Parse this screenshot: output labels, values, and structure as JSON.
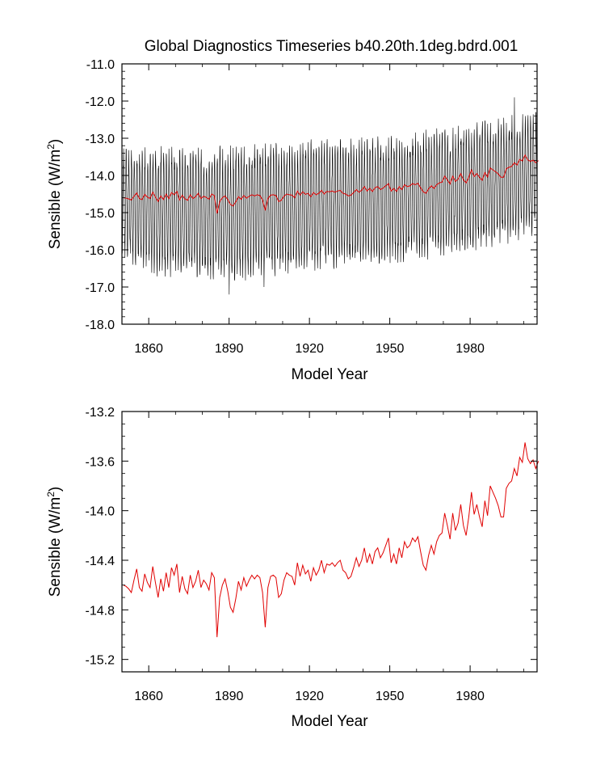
{
  "chart_data": [
    {
      "type": "line",
      "title": "Global Diagnostics Timeseries b40.20th.1deg.bdrd.001",
      "xlabel": "Model Year",
      "ylabel": "Sensible (W/m",
      "ylabel_sup": "2",
      "ylabel_end": ")",
      "xlim": [
        1850,
        2005
      ],
      "ylim": [
        -18.0,
        -11.0
      ],
      "x_ticks": [
        1860,
        1890,
        1920,
        1950,
        1980
      ],
      "x_tick_labels": [
        "1860",
        "1890",
        "1920",
        "1950",
        "1980"
      ],
      "y_ticks": [
        -18.0,
        -17.0,
        -16.0,
        -15.0,
        -14.0,
        -13.0,
        -12.0,
        -11.0
      ],
      "y_tick_labels": [
        "-18.0",
        "-17.0",
        "-16.0",
        "-15.0",
        "-14.0",
        "-13.0",
        "-12.0",
        "-11.0"
      ],
      "grid": false,
      "series": [
        {
          "kind": "monthly-seasonal-cycle",
          "color": "#000000",
          "x_start": 1850,
          "x_end": 2005,
          "monthly_high_envelope": [
            [
              1850,
              -13.5
            ],
            [
              1880,
              -13.5
            ],
            [
              1920,
              -13.3
            ],
            [
              1950,
              -13.2
            ],
            [
              1970,
              -13.0
            ],
            [
              1985,
              -12.8
            ],
            [
              2000,
              -12.6
            ],
            [
              2005,
              -12.5
            ]
          ],
          "monthly_low_envelope": [
            [
              1850,
              -16.0
            ],
            [
              1860,
              -16.4
            ],
            [
              1890,
              -16.6
            ],
            [
              1920,
              -16.3
            ],
            [
              1950,
              -16.1
            ],
            [
              1970,
              -15.9
            ],
            [
              1990,
              -15.6
            ],
            [
              2005,
              -15.4
            ]
          ],
          "extremes": [
            {
              "x": 1890,
              "y": -17.2
            },
            {
              "x": 1903,
              "y": -17.0
            },
            {
              "x": 1996,
              "y": -11.9
            }
          ]
        },
        {
          "kind": "annual-mean",
          "color": "#e00000",
          "ref": "annual_means"
        }
      ]
    },
    {
      "type": "line",
      "title": "",
      "xlabel": "Model Year",
      "ylabel": "Sensible (W/m",
      "ylabel_sup": "2",
      "ylabel_end": ")",
      "xlim": [
        1850,
        2005
      ],
      "ylim": [
        -15.3,
        -13.2
      ],
      "x_ticks": [
        1860,
        1890,
        1920,
        1950,
        1980
      ],
      "x_tick_labels": [
        "1860",
        "1890",
        "1920",
        "1950",
        "1980"
      ],
      "y_ticks": [
        -15.2,
        -14.8,
        -14.4,
        -14.0,
        -13.6,
        -13.2
      ],
      "y_tick_labels": [
        "-15.2",
        "-14.8",
        "-14.4",
        "-14.0",
        "-13.6",
        "-13.2"
      ],
      "grid": false,
      "series": [
        {
          "kind": "annual-mean",
          "color": "#e00000",
          "ref": "annual_means"
        }
      ]
    }
  ],
  "annual_means": {
    "x_start": 1850,
    "values": [
      -14.6,
      -14.61,
      -14.63,
      -14.66,
      -14.56,
      -14.47,
      -14.62,
      -14.65,
      -14.51,
      -14.58,
      -14.62,
      -14.45,
      -14.58,
      -14.7,
      -14.55,
      -14.65,
      -14.5,
      -14.62,
      -14.46,
      -14.52,
      -14.43,
      -14.66,
      -14.53,
      -14.63,
      -14.67,
      -14.52,
      -14.62,
      -14.57,
      -14.48,
      -14.62,
      -14.56,
      -14.59,
      -14.64,
      -14.5,
      -14.54,
      -15.02,
      -14.7,
      -14.6,
      -14.55,
      -14.65,
      -14.78,
      -14.82,
      -14.71,
      -14.57,
      -14.64,
      -14.54,
      -14.61,
      -14.56,
      -14.52,
      -14.55,
      -14.52,
      -14.54,
      -14.66,
      -14.94,
      -14.62,
      -14.53,
      -14.52,
      -14.54,
      -14.7,
      -14.67,
      -14.56,
      -14.5,
      -14.52,
      -14.53,
      -14.6,
      -14.42,
      -14.53,
      -14.44,
      -14.51,
      -14.48,
      -14.57,
      -14.46,
      -14.52,
      -14.48,
      -14.4,
      -14.5,
      -14.43,
      -14.44,
      -14.42,
      -14.45,
      -14.42,
      -14.4,
      -14.48,
      -14.5,
      -14.55,
      -14.53,
      -14.46,
      -14.38,
      -14.45,
      -14.4,
      -14.3,
      -14.42,
      -14.35,
      -14.43,
      -14.33,
      -14.3,
      -14.38,
      -14.34,
      -14.28,
      -14.22,
      -14.42,
      -14.35,
      -14.43,
      -14.3,
      -14.38,
      -14.25,
      -14.3,
      -14.28,
      -14.22,
      -14.25,
      -14.21,
      -14.33,
      -14.44,
      -14.48,
      -14.36,
      -14.28,
      -14.35,
      -14.25,
      -14.2,
      -14.18,
      -14.02,
      -14.12,
      -14.23,
      -14.02,
      -14.16,
      -14.1,
      -13.95,
      -14.12,
      -14.2,
      -14.05,
      -13.85,
      -14.03,
      -13.95,
      -14.05,
      -14.13,
      -13.92,
      -14.04,
      -13.8,
      -13.85,
      -13.9,
      -13.96,
      -14.05,
      -14.05,
      -13.82,
      -13.78,
      -13.76,
      -13.66,
      -13.72,
      -13.57,
      -13.61,
      -13.45,
      -13.58,
      -13.62,
      -13.59,
      -13.66,
      -13.6
    ]
  }
}
